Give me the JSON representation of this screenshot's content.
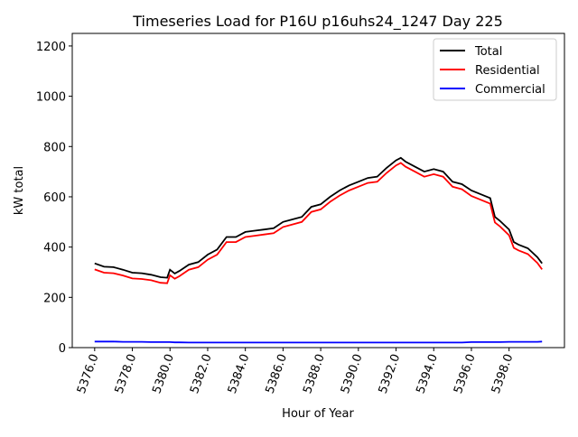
{
  "chart_data": {
    "type": "line",
    "title": "Timeseries Load for P16U p16uhs24_1247  Day 225",
    "xlabel": "Hour of Year",
    "ylabel": "kW total",
    "xlim": [
      5374.81,
      5400.94
    ],
    "ylim": [
      0,
      1250
    ],
    "xticks": [
      5376,
      5378,
      5380,
      5382,
      5384,
      5386,
      5388,
      5390,
      5392,
      5394,
      5396,
      5398
    ],
    "xtick_labels": [
      "5376.0",
      "5378.0",
      "5380.0",
      "5382.0",
      "5384.0",
      "5386.0",
      "5388.0",
      "5390.0",
      "5392.0",
      "5394.0",
      "5396.0",
      "5398.0"
    ],
    "yticks": [
      0,
      200,
      400,
      600,
      800,
      1000,
      1200
    ],
    "ytick_labels": [
      "0",
      "200",
      "400",
      "600",
      "800",
      "1000",
      "1200"
    ],
    "grid": false,
    "legend_position": "top-right",
    "x": [
      5376.0,
      5376.5,
      5377.0,
      5377.5,
      5378.0,
      5378.5,
      5379.0,
      5379.5,
      5379.85,
      5380.0,
      5380.25,
      5380.5,
      5381.0,
      5381.5,
      5382.0,
      5382.5,
      5383.0,
      5383.5,
      5384.0,
      5384.5,
      5385.0,
      5385.5,
      5386.0,
      5386.5,
      5387.0,
      5387.5,
      5388.0,
      5388.5,
      5389.0,
      5389.5,
      5390.0,
      5390.5,
      5391.0,
      5391.5,
      5392.0,
      5392.25,
      5392.5,
      5393.0,
      5393.5,
      5394.0,
      5394.5,
      5395.0,
      5395.5,
      5396.0,
      5396.5,
      5397.0,
      5397.25,
      5397.5,
      5398.0,
      5398.25,
      5398.5,
      5399.0,
      5399.5,
      5399.75
    ],
    "series": [
      {
        "name": "Total",
        "color": "#000000",
        "values": [
          335,
          322,
          320,
          310,
          298,
          296,
          290,
          280,
          278,
          310,
          295,
          305,
          330,
          340,
          370,
          390,
          440,
          440,
          460,
          465,
          470,
          475,
          500,
          510,
          520,
          560,
          570,
          600,
          625,
          645,
          660,
          675,
          680,
          715,
          745,
          755,
          740,
          720,
          700,
          710,
          700,
          660,
          650,
          625,
          610,
          595,
          520,
          505,
          470,
          420,
          410,
          395,
          360,
          335
        ]
      },
      {
        "name": "Residential",
        "color": "#ff0000",
        "values": [
          311,
          298,
          296,
          287,
          275,
          273,
          268,
          258,
          256,
          288,
          274,
          284,
          310,
          320,
          350,
          370,
          420,
          420,
          440,
          445,
          450,
          455,
          480,
          490,
          500,
          540,
          550,
          580,
          605,
          625,
          640,
          655,
          660,
          695,
          725,
          735,
          720,
          700,
          680,
          690,
          680,
          640,
          630,
          603,
          588,
          573,
          498,
          483,
          447,
          397,
          387,
          372,
          337,
          311
        ]
      },
      {
        "name": "Commercial",
        "color": "#0000ff",
        "values": [
          24,
          24,
          24,
          23,
          23,
          23,
          22,
          22,
          22,
          22,
          21,
          21,
          20,
          20,
          20,
          20,
          20,
          20,
          20,
          20,
          20,
          20,
          20,
          20,
          20,
          20,
          20,
          20,
          20,
          20,
          20,
          20,
          20,
          20,
          20,
          20,
          20,
          20,
          20,
          20,
          20,
          20,
          20,
          22,
          22,
          22,
          22,
          22,
          23,
          23,
          23,
          23,
          23,
          24
        ]
      }
    ]
  }
}
